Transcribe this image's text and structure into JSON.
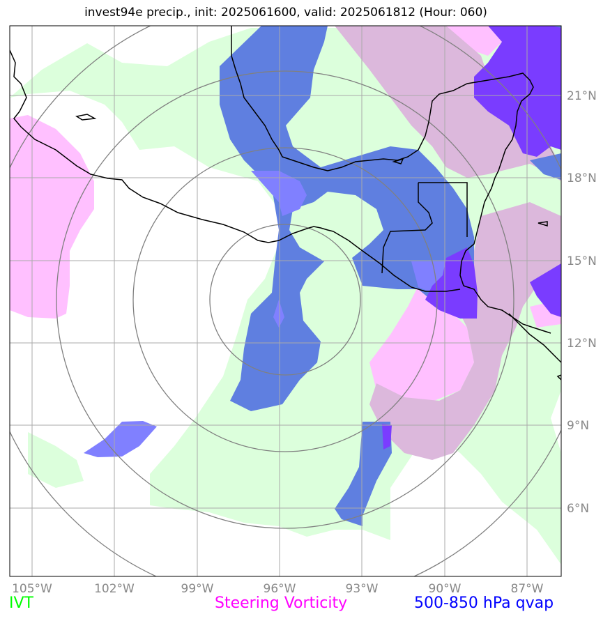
{
  "title": "invest94e precip., init: 2025061600, valid: 2025061812 (Hour: 060)",
  "lon_labels": [
    "105°W",
    "102°W",
    "99°W",
    "96°W",
    "93°W",
    "90°W",
    "87°W"
  ],
  "lat_labels": [
    "21°N",
    "18°N",
    "15°N",
    "12°N",
    "9°N",
    "6°N"
  ],
  "legend": {
    "ivt": {
      "label": "IVT",
      "color": "#00ff00"
    },
    "vorticity": {
      "label": "Steering Vorticity",
      "color": "#ff00ff"
    },
    "qvap": {
      "label": "500-850 hPa qvap",
      "color": "#0000ff"
    }
  },
  "colors": {
    "ivt_fill": "#dcffdc",
    "vort_fill": "#ffc0ff",
    "qvap_fill": "#5f7fe0",
    "qvap_light": "#8080ff",
    "overlap": "#dcb8dc",
    "strong": "#7a3cff",
    "grid": "#aaaaaa",
    "rings": "#808080"
  }
}
